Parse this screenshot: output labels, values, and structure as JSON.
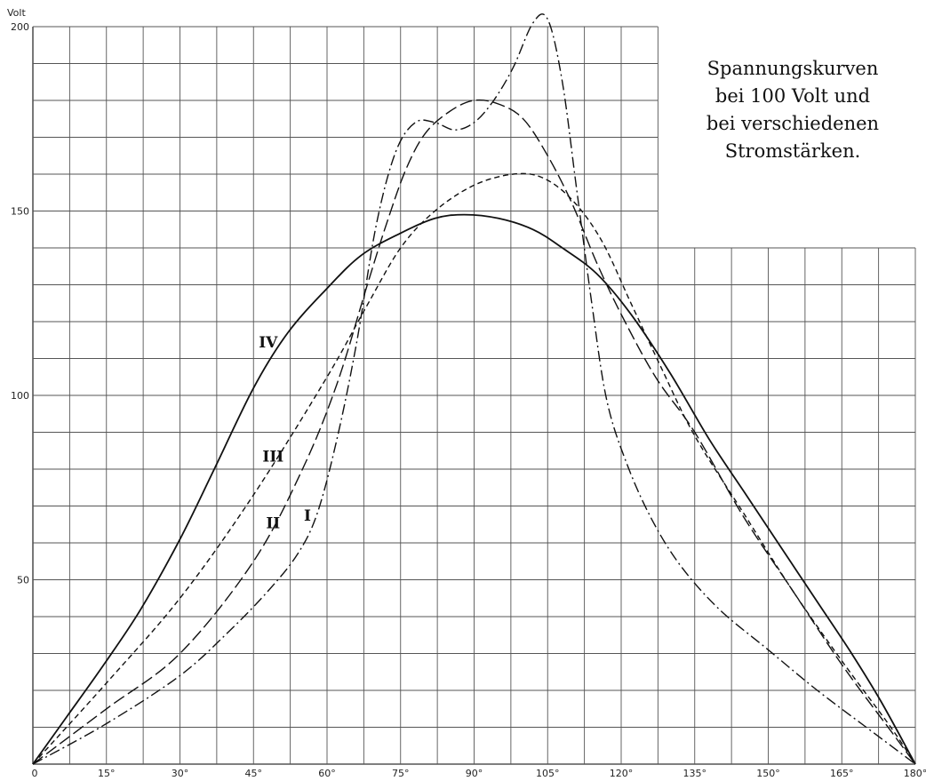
{
  "chart_data": {
    "type": "line",
    "title_lines": [
      "Spannungskurven",
      "bei 100 Volt und",
      "bei verschiedenen",
      "Stromstärken."
    ],
    "ylabel": "Volt",
    "xlim": [
      0,
      180
    ],
    "ylim": [
      0,
      200
    ],
    "x_ticks": [
      "0",
      "15°",
      "30°",
      "45°",
      "60°",
      "75°",
      "90°",
      "105°",
      "120°",
      "135°",
      "150°",
      "165°",
      "180°"
    ],
    "y_ticks": [
      {
        "value": 50,
        "label": "50"
      },
      {
        "value": 100,
        "label": "100"
      },
      {
        "value": 150,
        "label": "150"
      },
      {
        "value": 200,
        "label": "200"
      }
    ],
    "grid": true,
    "series": [
      {
        "name": "I",
        "style": "dash-dot",
        "label_at": [
          56,
          66
        ],
        "points": [
          [
            0,
            0
          ],
          [
            15,
            11
          ],
          [
            30,
            24
          ],
          [
            40,
            36
          ],
          [
            48,
            47
          ],
          [
            54,
            57
          ],
          [
            58,
            68
          ],
          [
            62,
            88
          ],
          [
            66,
            114
          ],
          [
            70,
            146
          ],
          [
            74,
            166
          ],
          [
            78,
            174
          ],
          [
            82,
            174
          ],
          [
            86,
            172
          ],
          [
            90,
            174
          ],
          [
            94,
            180
          ],
          [
            98,
            189
          ],
          [
            102,
            201
          ],
          [
            105,
            202
          ],
          [
            108,
            185
          ],
          [
            111,
            155
          ],
          [
            114,
            125
          ],
          [
            117,
            99
          ],
          [
            121,
            82
          ],
          [
            126,
            67
          ],
          [
            132,
            54
          ],
          [
            140,
            42
          ],
          [
            150,
            31
          ],
          [
            160,
            20
          ],
          [
            170,
            10
          ],
          [
            180,
            0
          ]
        ]
      },
      {
        "name": "II",
        "style": "long-dash",
        "label_at": [
          49,
          64
        ],
        "points": [
          [
            0,
            0
          ],
          [
            15,
            15
          ],
          [
            30,
            30
          ],
          [
            45,
            55
          ],
          [
            55,
            80
          ],
          [
            62,
            103
          ],
          [
            68,
            129
          ],
          [
            72,
            146
          ],
          [
            76,
            161
          ],
          [
            80,
            171
          ],
          [
            85,
            177
          ],
          [
            90,
            180
          ],
          [
            95,
            179
          ],
          [
            100,
            175
          ],
          [
            105,
            165
          ],
          [
            110,
            152
          ],
          [
            115,
            136
          ],
          [
            120,
            122
          ],
          [
            127,
            105
          ],
          [
            135,
            90
          ],
          [
            145,
            67
          ],
          [
            155,
            47
          ],
          [
            165,
            27
          ],
          [
            175,
            9
          ],
          [
            180,
            0
          ]
        ]
      },
      {
        "name": "III",
        "style": "short-dash",
        "label_at": [
          49,
          82
        ],
        "points": [
          [
            0,
            0
          ],
          [
            15,
            22
          ],
          [
            30,
            45
          ],
          [
            45,
            73
          ],
          [
            60,
            105
          ],
          [
            68,
            124
          ],
          [
            75,
            140
          ],
          [
            82,
            150
          ],
          [
            90,
            157
          ],
          [
            98,
            160
          ],
          [
            104,
            159
          ],
          [
            110,
            153
          ],
          [
            116,
            142
          ],
          [
            122,
            125
          ],
          [
            128,
            108
          ],
          [
            135,
            89
          ],
          [
            145,
            68
          ],
          [
            155,
            47
          ],
          [
            165,
            28
          ],
          [
            175,
            10
          ],
          [
            180,
            0
          ]
        ]
      },
      {
        "name": "IV",
        "style": "solid",
        "label_at": [
          48,
          113
        ],
        "points": [
          [
            0,
            0
          ],
          [
            7,
            13
          ],
          [
            15,
            28
          ],
          [
            22,
            42
          ],
          [
            30,
            61
          ],
          [
            37,
            80
          ],
          [
            45,
            102
          ],
          [
            52,
            117
          ],
          [
            60,
            129
          ],
          [
            67,
            138
          ],
          [
            75,
            144
          ],
          [
            82,
            148
          ],
          [
            88,
            149
          ],
          [
            95,
            148
          ],
          [
            102,
            145
          ],
          [
            108,
            140
          ],
          [
            115,
            133
          ],
          [
            122,
            122
          ],
          [
            130,
            106
          ],
          [
            138,
            88
          ],
          [
            145,
            74
          ],
          [
            152,
            60
          ],
          [
            160,
            44
          ],
          [
            167,
            30
          ],
          [
            173,
            17
          ],
          [
            180,
            0
          ]
        ]
      }
    ]
  }
}
